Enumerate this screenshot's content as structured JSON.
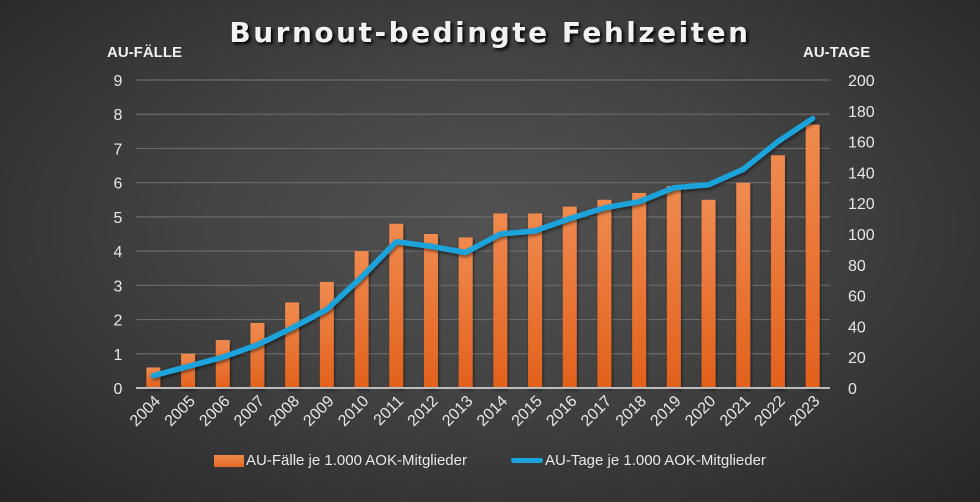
{
  "chart_data": {
    "type": "bar+line",
    "title": "Burnout-bedingte Fehlzeiten",
    "ylabel_left": "AU-FÄLLE",
    "ylabel_right": "AU-TAGE",
    "ylim_left": [
      0,
      9
    ],
    "ylim_right": [
      0,
      200
    ],
    "yticks_left": [
      0,
      1,
      2,
      3,
      4,
      5,
      6,
      7,
      8,
      9
    ],
    "yticks_right": [
      0,
      20,
      40,
      60,
      80,
      100,
      120,
      140,
      160,
      180,
      200
    ],
    "grid": true,
    "legend_position": "bottom",
    "categories": [
      "2004",
      "2005",
      "2006",
      "2007",
      "2008",
      "2009",
      "2010",
      "2011",
      "2012",
      "2013",
      "2014",
      "2015",
      "2016",
      "2017",
      "2018",
      "2019",
      "2020",
      "2021",
      "2022",
      "2023"
    ],
    "series": [
      {
        "name": "AU-Fälle je 1.000 AOK-Mitglieder",
        "type": "bar",
        "axis": "left",
        "color": "#e8692a",
        "values": [
          0.6,
          1.0,
          1.4,
          1.9,
          2.5,
          3.1,
          4.0,
          4.8,
          4.5,
          4.4,
          5.1,
          5.1,
          5.3,
          5.5,
          5.7,
          5.9,
          5.5,
          6.0,
          6.8,
          7.7
        ]
      },
      {
        "name": "AU-Tage je 1.000 AOK-Mitglieder",
        "type": "line",
        "axis": "right",
        "color": "#1aa3dc",
        "values": [
          8,
          14,
          20,
          28,
          39,
          51,
          72,
          95,
          92,
          88,
          100,
          102,
          110,
          117,
          121,
          130,
          132,
          142,
          160,
          175
        ]
      }
    ]
  },
  "legend": {
    "bar_label": "AU-Fälle je 1.000 AOK-Mitglieder",
    "line_label": "AU-Tage je 1.000 AOK-Mitglieder"
  }
}
